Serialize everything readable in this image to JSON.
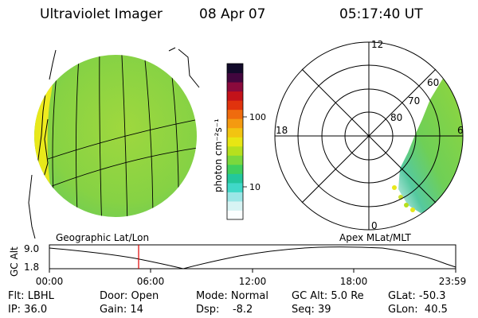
{
  "header": {
    "title": "Ultraviolet Imager",
    "date": "08 Apr 07",
    "time": "05:17:40 UT"
  },
  "colorbar": {
    "unit_label": "photon cm⁻²s⁻¹",
    "ticks": [
      "100",
      "10"
    ],
    "colors": [
      "#fbffff",
      "#d8f4f4",
      "#9be6e6",
      "#40d8c8",
      "#23c79d",
      "#3fcf5e",
      "#7bd83d",
      "#b6e01e",
      "#e8e613",
      "#f2c411",
      "#f49a10",
      "#ef6b0e",
      "#e0330d",
      "#c3121a",
      "#8a0a3c",
      "#42063e",
      "#120a2a"
    ]
  },
  "left_panel": {
    "caption": "Geographic Lat/Lon"
  },
  "right_panel": {
    "caption": "Apex MLat/MLT",
    "mlt_labels": {
      "top": "12",
      "left": "18",
      "right": "6",
      "bottom": "0"
    },
    "lat_labels": [
      "60",
      "70",
      "80"
    ]
  },
  "timeline": {
    "ylabel": "GC Alt",
    "y_ticks": [
      "9.0",
      "1.8"
    ],
    "x_ticks": [
      "00:00",
      "06:00",
      "12:00",
      "18:00",
      "23:59"
    ],
    "marker_color": "#e00000"
  },
  "info": {
    "filter": "Flt: LBHL",
    "ip": "IP: 36.0",
    "door": "Door: Open",
    "gain": "Gain: 14",
    "mode": "Mode: Normal",
    "dsp": "Dsp:    -8.2",
    "gc_alt": "GC Alt: 5.0 Re",
    "seq": "Seq: 39",
    "glat": "GLat: -50.3",
    "glon": "GLon:  40.5"
  }
}
